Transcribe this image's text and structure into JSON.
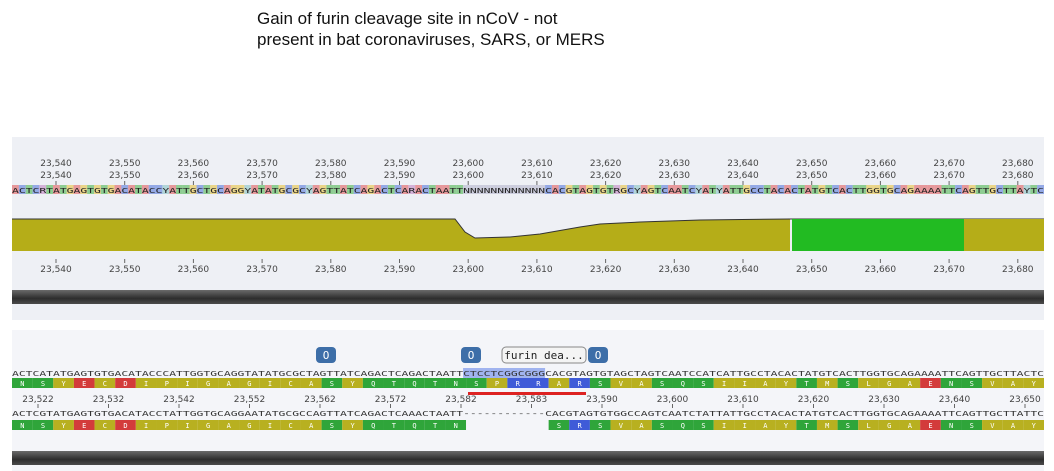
{
  "title": {
    "line1": "Gain of furin cleavage site in nCoV - not",
    "line2": "present in bat coronaviruses, SARS, or MERS"
  },
  "ruler_top": {
    "labels": [
      "23,540",
      "23,550",
      "23,560",
      "23,570",
      "23,580",
      "23,590",
      "23,600",
      "23,610",
      "23,620",
      "23,630",
      "23,640",
      "23,650",
      "23,660",
      "23,670",
      "23,680"
    ]
  },
  "consensus_seq": "ACTCRTATGAGTGTGACATACCYATTGCTGCAGGYATATGCGCYAGTTATCAGACTCARACTAATTNNNNNNNNNNNNCACGTAGTGTRGCYAGTCAATCYATYATTGCCTACACTATGTCACTTGGTGCAGAAAATTCAGTTGCTTAYTC",
  "annotations": {
    "markers": [
      "O",
      "O",
      "O"
    ],
    "furin_label": "furin dea..."
  },
  "seq1": {
    "nt": "ACTCATATGAGTGTGACATACCCATTGGTGCAGGTATATGCGCTAGTTATCAGACTCAGACTAATTCTCCTCGGCGGGCACGTAGTGTAGCTAGTCAATCCATCATTGCCTACACTATGTCACTTGGTGCAGAAAATTCAGTTGCTTACTC",
    "aa": [
      "N",
      "S",
      "Y",
      "E",
      "C",
      "D",
      "I",
      "P",
      "I",
      "G",
      "A",
      "G",
      "I",
      "C",
      "A",
      "S",
      "Y",
      "Q",
      "T",
      "Q",
      "T",
      "N",
      "S",
      "P",
      "R",
      "R",
      "A",
      "R",
      "S",
      "V",
      "A",
      "S",
      "Q",
      "S",
      "I",
      "I",
      "A",
      "Y",
      "T",
      "M",
      "S",
      "L",
      "G",
      "A",
      "E",
      "N",
      "S",
      "V",
      "A",
      "Y"
    ],
    "ruler": [
      "23,522",
      "23,532",
      "23,542",
      "23,552",
      "23,562",
      "23,572",
      "23,582",
      "23,583",
      "23,590",
      "23,600",
      "23,610",
      "23,620",
      "23,630",
      "23,640",
      "23,650"
    ]
  },
  "seq2": {
    "nt": "ACTCGTATGAGTGTGACATACCTATTGGTGCAGGAATATGCGCCAGTTATCAGACTCAAACTAATT------------CACGTAGTGTGGCCAGTCAATCTATTATTGCCTACACTATGTCACTTGGTGCAGAAAATTCAGTTGCTTATTC",
    "aa": [
      "N",
      "S",
      "Y",
      "E",
      "C",
      "D",
      "I",
      "P",
      "I",
      "G",
      "A",
      "G",
      "I",
      "C",
      "A",
      "S",
      "Y",
      "Q",
      "T",
      "Q",
      "T",
      "N",
      "",
      "",
      "",
      "",
      "S",
      "R",
      "S",
      "V",
      "A",
      "S",
      "Q",
      "S",
      "I",
      "I",
      "A",
      "Y",
      "T",
      "M",
      "S",
      "L",
      "G",
      "A",
      "E",
      "N",
      "S",
      "V",
      "A",
      "Y"
    ]
  },
  "colors": {
    "coverage": "#b5ad18",
    "coverage_high": "#22bb22",
    "aa_default": "#b8b020",
    "aa_charged": "#d33b3b",
    "aa_basic": "#3f5bd8",
    "aa_polar": "#2fa53a"
  }
}
